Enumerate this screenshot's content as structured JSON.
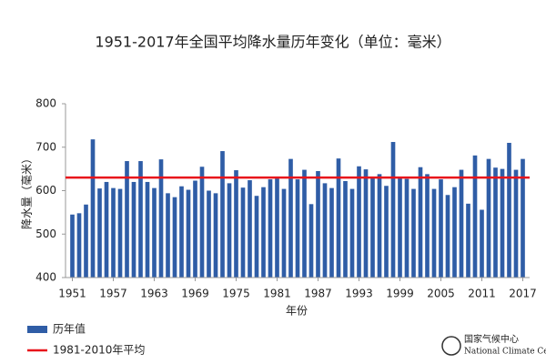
{
  "chart_data": {
    "type": "bar",
    "title": "1951-2017年全国平均降水量历年变化（单位：毫米）",
    "x_label": "年份",
    "y_label": "降水量（毫米）",
    "x": [
      1951,
      1952,
      1953,
      1954,
      1955,
      1956,
      1957,
      1958,
      1959,
      1960,
      1961,
      1962,
      1963,
      1964,
      1965,
      1966,
      1967,
      1968,
      1969,
      1970,
      1971,
      1972,
      1973,
      1974,
      1975,
      1976,
      1977,
      1978,
      1979,
      1980,
      1981,
      1982,
      1983,
      1984,
      1985,
      1986,
      1987,
      1988,
      1989,
      1990,
      1991,
      1992,
      1993,
      1994,
      1995,
      1996,
      1997,
      1998,
      1999,
      2000,
      2001,
      2002,
      2003,
      2004,
      2005,
      2006,
      2007,
      2008,
      2009,
      2010,
      2011,
      2012,
      2013,
      2014,
      2015,
      2016,
      2017
    ],
    "series": [
      {
        "name": "历年值",
        "color": "#2f5da6",
        "values": [
          545,
          548,
          568,
          718,
          605,
          620,
          606,
          604,
          668,
          620,
          668,
          620,
          606,
          672,
          594,
          585,
          610,
          602,
          623,
          655,
          600,
          594,
          691,
          617,
          647,
          607,
          624,
          588,
          608,
          626,
          628,
          604,
          673,
          626,
          648,
          569,
          645,
          617,
          606,
          674,
          622,
          604,
          656,
          649,
          630,
          638,
          611,
          712,
          631,
          627,
          604,
          654,
          638,
          604,
          626,
          590,
          608,
          648,
          570,
          681,
          556,
          673,
          653,
          650,
          710,
          648,
          673
        ]
      }
    ],
    "reference": {
      "name": "1981-2010年平均",
      "value": 630,
      "color": "#e8141b"
    },
    "xlim": [
      1950,
      2018
    ],
    "xticks": [
      1951,
      1957,
      1963,
      1969,
      1975,
      1981,
      1987,
      1993,
      1999,
      2005,
      2011,
      2017
    ],
    "ylim": [
      400,
      800
    ],
    "yticks": [
      400,
      500,
      600,
      700,
      800
    ],
    "source": {
      "name": "国家气候中心",
      "name_en": "National Climate Center"
    }
  }
}
